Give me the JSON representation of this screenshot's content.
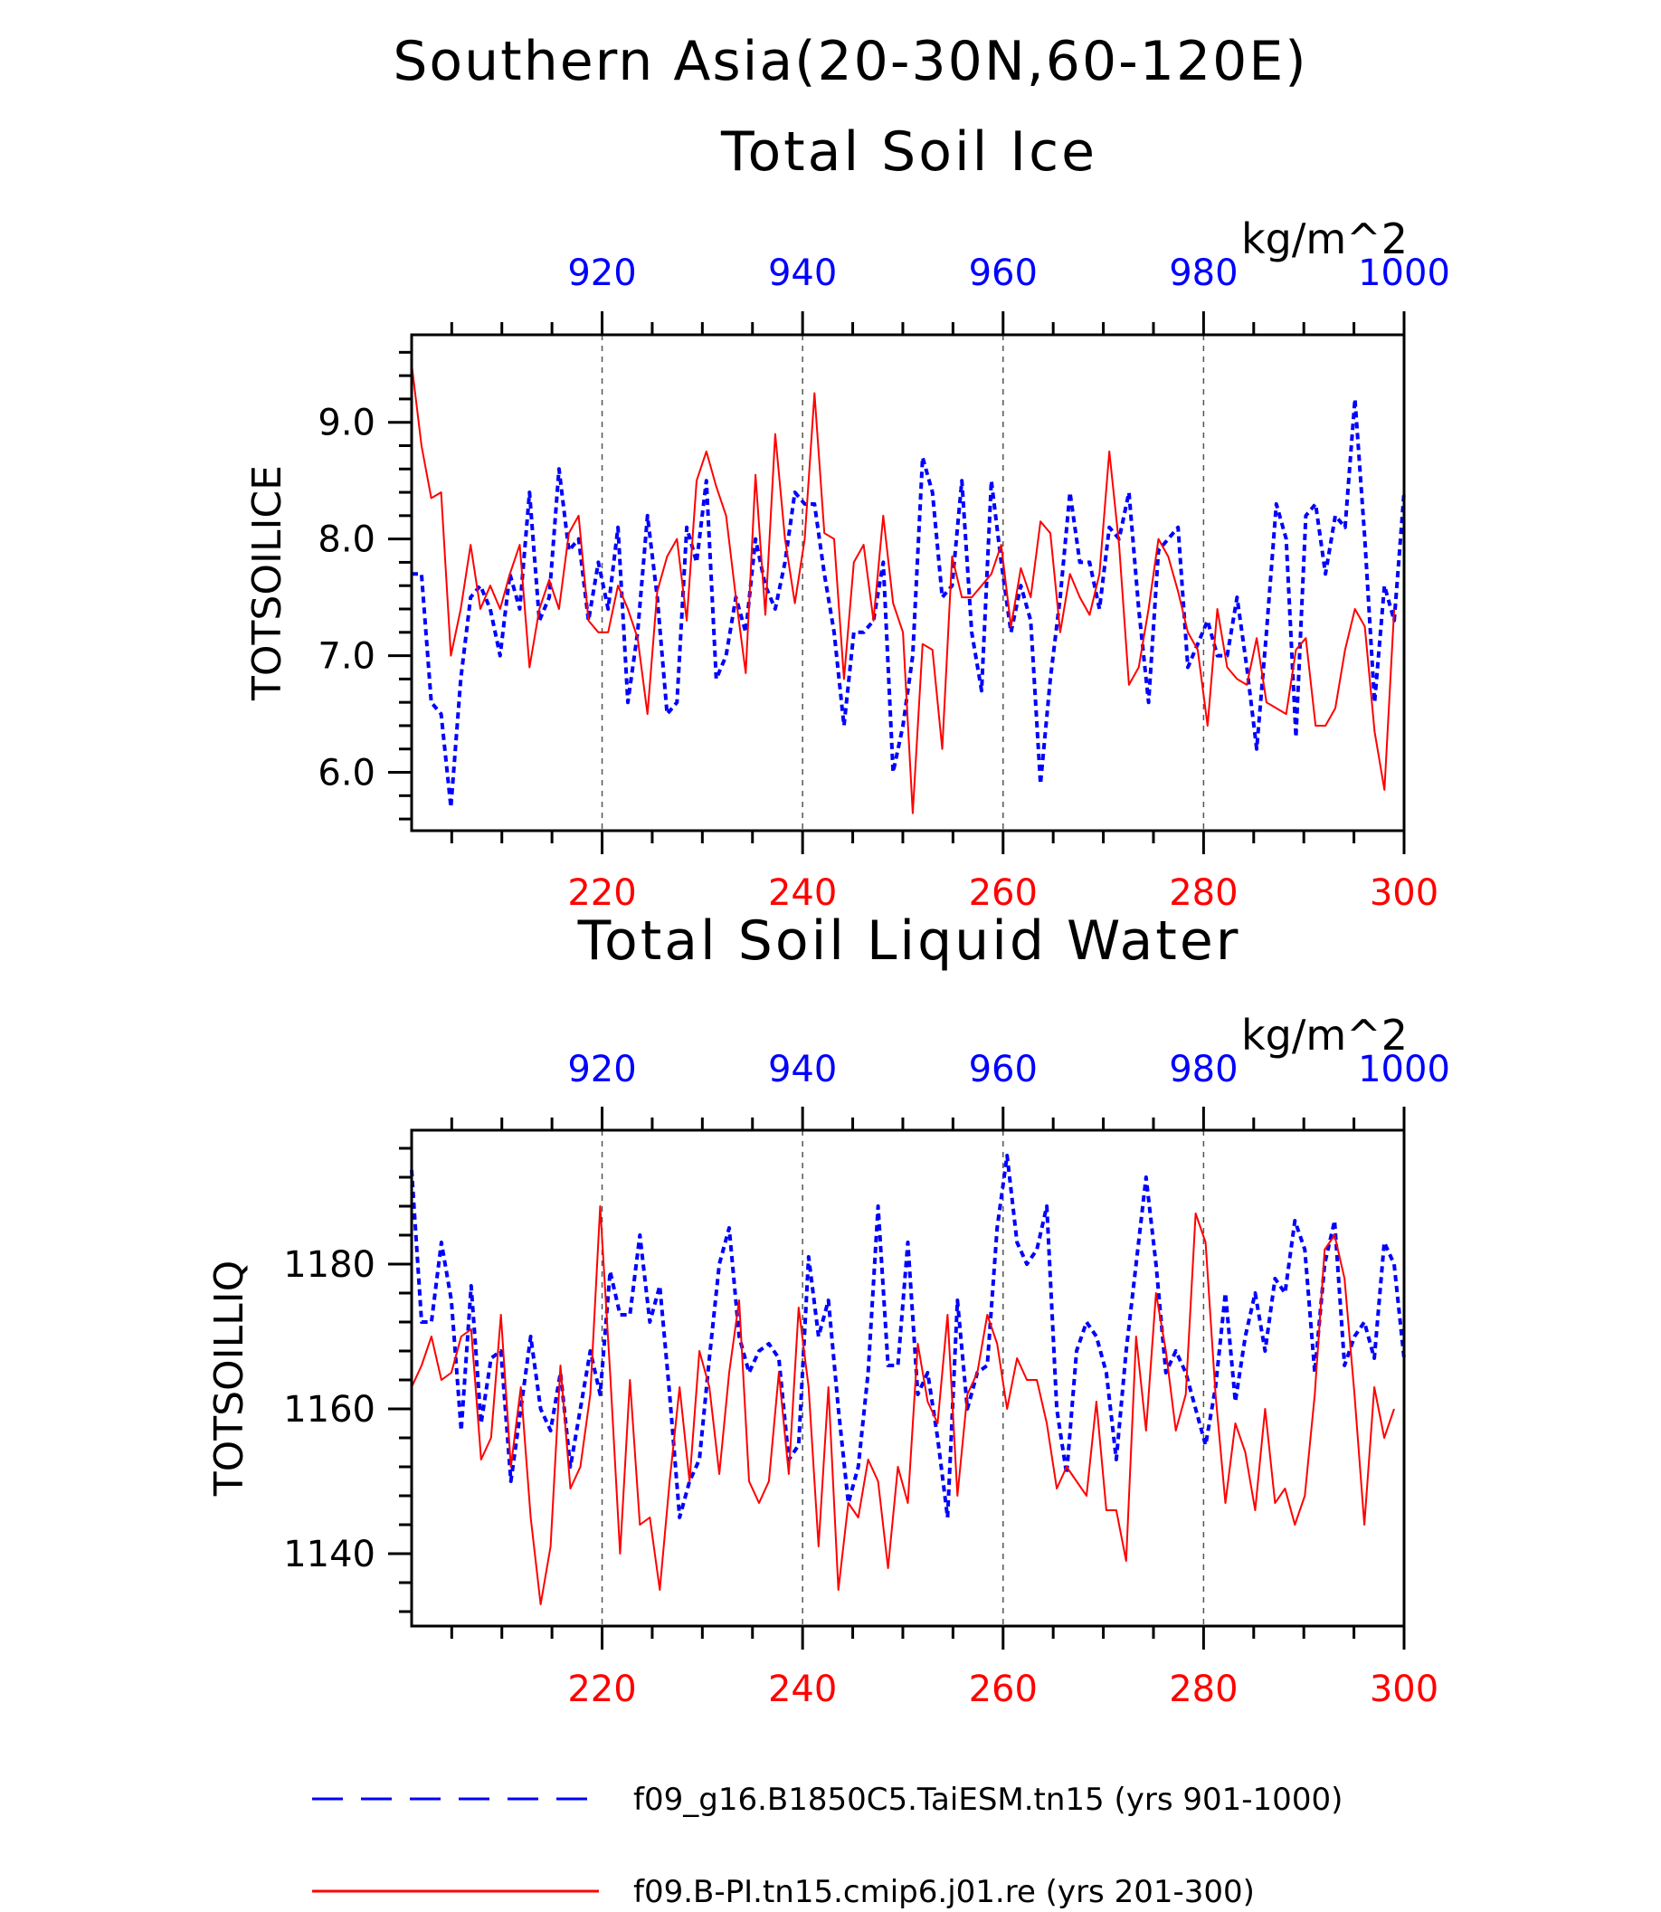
{
  "figure": {
    "title_line1": "Southern Asia(20-30N,60-120E)",
    "legend": [
      {
        "label": "f09_g16.B1850C5.TaiESM.tn15 (yrs 901-1000)",
        "color": "#0000ff",
        "dash": "dashed"
      },
      {
        "label": "f09.B-PI.tn15.cmip6.j01.re (yrs 201-300)",
        "color": "#ff0000",
        "dash": "solid"
      }
    ]
  },
  "chart_data": [
    {
      "type": "line",
      "title": "Total Soil Ice",
      "ylabel": "TOTSOILICE",
      "units": "kg/m^2",
      "ylim": [
        5.5,
        9.75
      ],
      "yticks": [
        6.0,
        7.0,
        8.0,
        9.0
      ],
      "ytick_labels": [
        "6.0",
        "7.0",
        "8.0",
        "9.0"
      ],
      "x_bottom": {
        "range": [
          201,
          300
        ],
        "ticks": [
          220,
          240,
          260,
          280,
          300
        ],
        "color": "#ff0000"
      },
      "x_top": {
        "range": [
          901,
          1000
        ],
        "ticks": [
          920,
          940,
          960,
          980,
          1000
        ],
        "color": "#0000ff"
      },
      "grid": "vertical-dashed",
      "series": [
        {
          "color": "#0000ff",
          "style": "dashed",
          "axis": "top",
          "values": [
            7.7,
            7.7,
            6.6,
            6.5,
            5.7,
            6.8,
            7.5,
            7.6,
            7.4,
            7.0,
            7.7,
            7.4,
            8.4,
            7.3,
            7.5,
            8.6,
            7.9,
            8.0,
            7.3,
            7.8,
            7.4,
            8.1,
            6.6,
            7.2,
            8.2,
            7.5,
            6.5,
            6.6,
            8.1,
            7.8,
            8.5,
            6.8,
            7.0,
            7.5,
            7.2,
            8.0,
            7.6,
            7.4,
            7.8,
            8.4,
            8.3,
            8.3,
            7.7,
            7.2,
            6.4,
            7.2,
            7.2,
            7.3,
            7.8,
            6.0,
            6.4,
            7.0,
            8.7,
            8.4,
            7.5,
            7.6,
            8.5,
            7.2,
            6.7,
            8.5,
            7.8,
            7.2,
            7.6,
            7.3,
            5.9,
            6.8,
            7.5,
            8.4,
            7.8,
            7.8,
            7.4,
            8.1,
            8.0,
            8.4,
            7.4,
            6.6,
            7.9,
            8.0,
            8.1,
            6.9,
            7.1,
            7.3,
            7.0,
            7.0,
            7.5,
            6.9,
            6.2,
            7.2,
            8.3,
            8.0,
            6.3,
            8.2,
            8.3,
            7.7,
            8.2,
            8.1,
            9.2,
            8.0,
            6.6,
            7.6,
            7.3,
            8.4
          ]
        },
        {
          "color": "#ff0000",
          "style": "solid",
          "axis": "bottom",
          "values": [
            9.5,
            8.8,
            8.35,
            8.4,
            7.0,
            7.4,
            7.95,
            7.4,
            7.6,
            7.4,
            7.7,
            7.95,
            6.9,
            7.4,
            7.65,
            7.4,
            8.05,
            8.2,
            7.3,
            7.2,
            7.2,
            7.6,
            7.4,
            7.15,
            6.5,
            7.55,
            7.85,
            8.0,
            7.3,
            8.5,
            8.75,
            8.45,
            8.2,
            7.5,
            6.85,
            8.55,
            7.35,
            8.9,
            8.0,
            7.45,
            8.0,
            9.25,
            8.05,
            8.0,
            6.8,
            7.8,
            7.95,
            7.3,
            8.2,
            7.45,
            7.2,
            5.65,
            7.1,
            7.05,
            6.2,
            7.85,
            7.5,
            7.5,
            7.6,
            7.7,
            7.95,
            7.25,
            7.75,
            7.5,
            8.15,
            8.05,
            7.2,
            7.7,
            7.5,
            7.35,
            7.7,
            8.75,
            7.95,
            6.75,
            6.9,
            7.4,
            8.0,
            7.85,
            7.55,
            7.2,
            7.05,
            6.4,
            7.4,
            6.9,
            6.8,
            6.75,
            7.15,
            6.6,
            6.55,
            6.5,
            7.05,
            7.15,
            6.4,
            6.4,
            6.55,
            7.05,
            7.4,
            7.25,
            6.35,
            5.85,
            7.4
          ]
        }
      ]
    },
    {
      "type": "line",
      "title": "Total Soil Liquid Water",
      "ylabel": "TOTSOILLIQ",
      "units": "kg/m^2",
      "ylim": [
        1130,
        1198.5
      ],
      "yticks": [
        1140,
        1160,
        1180
      ],
      "ytick_labels": [
        "1140",
        "1160",
        "1180"
      ],
      "x_bottom": {
        "range": [
          201,
          300
        ],
        "ticks": [
          220,
          240,
          260,
          280,
          300
        ],
        "color": "#ff0000"
      },
      "x_top": {
        "range": [
          901,
          1000
        ],
        "ticks": [
          920,
          940,
          960,
          980,
          1000
        ],
        "color": "#0000ff"
      },
      "grid": "vertical-dashed",
      "series": [
        {
          "color": "#0000ff",
          "style": "dashed",
          "axis": "top",
          "values": [
            1193,
            1172,
            1172,
            1183,
            1175,
            1157,
            1177,
            1158,
            1167,
            1168,
            1150,
            1160,
            1170,
            1160,
            1157,
            1165,
            1152,
            1160,
            1168,
            1162,
            1179,
            1173,
            1173,
            1184,
            1172,
            1177,
            1162,
            1145,
            1150,
            1153,
            1167,
            1180,
            1185,
            1170,
            1165,
            1168,
            1169,
            1167,
            1153,
            1155,
            1181,
            1170,
            1175,
            1160,
            1147,
            1152,
            1165,
            1188,
            1166,
            1166,
            1183,
            1162,
            1165,
            1156,
            1145,
            1175,
            1160,
            1165,
            1166,
            1185,
            1195,
            1183,
            1180,
            1182,
            1188,
            1160,
            1151,
            1168,
            1172,
            1170,
            1165,
            1153,
            1168,
            1180,
            1192,
            1180,
            1165,
            1168,
            1165,
            1160,
            1155,
            1163,
            1176,
            1161,
            1170,
            1176,
            1168,
            1178,
            1176,
            1186,
            1182,
            1165,
            1180,
            1186,
            1166,
            1170,
            1172,
            1167,
            1183,
            1180,
            1167
          ]
        },
        {
          "color": "#ff0000",
          "style": "solid",
          "axis": "bottom",
          "values": [
            1163,
            1166,
            1170,
            1164,
            1165,
            1170,
            1171,
            1153,
            1156,
            1173,
            1152,
            1163,
            1145,
            1133,
            1141,
            1166,
            1149,
            1152,
            1162,
            1188,
            1165,
            1140,
            1164,
            1144,
            1145,
            1135,
            1150,
            1163,
            1150,
            1168,
            1163,
            1151,
            1165,
            1175,
            1150,
            1147,
            1150,
            1165,
            1151,
            1174,
            1163,
            1141,
            1163,
            1135,
            1147,
            1145,
            1153,
            1150,
            1138,
            1152,
            1147,
            1169,
            1161,
            1158,
            1173,
            1148,
            1162,
            1165,
            1173,
            1169,
            1160,
            1167,
            1164,
            1164,
            1158,
            1149,
            1152,
            1150,
            1148,
            1161,
            1146,
            1146,
            1139,
            1170,
            1157,
            1176,
            1168,
            1157,
            1162,
            1187,
            1183,
            1162,
            1147,
            1158,
            1154,
            1146,
            1160,
            1147,
            1149,
            1144,
            1148,
            1162,
            1182,
            1184,
            1178,
            1162,
            1144,
            1163,
            1156,
            1160
          ]
        }
      ]
    }
  ]
}
